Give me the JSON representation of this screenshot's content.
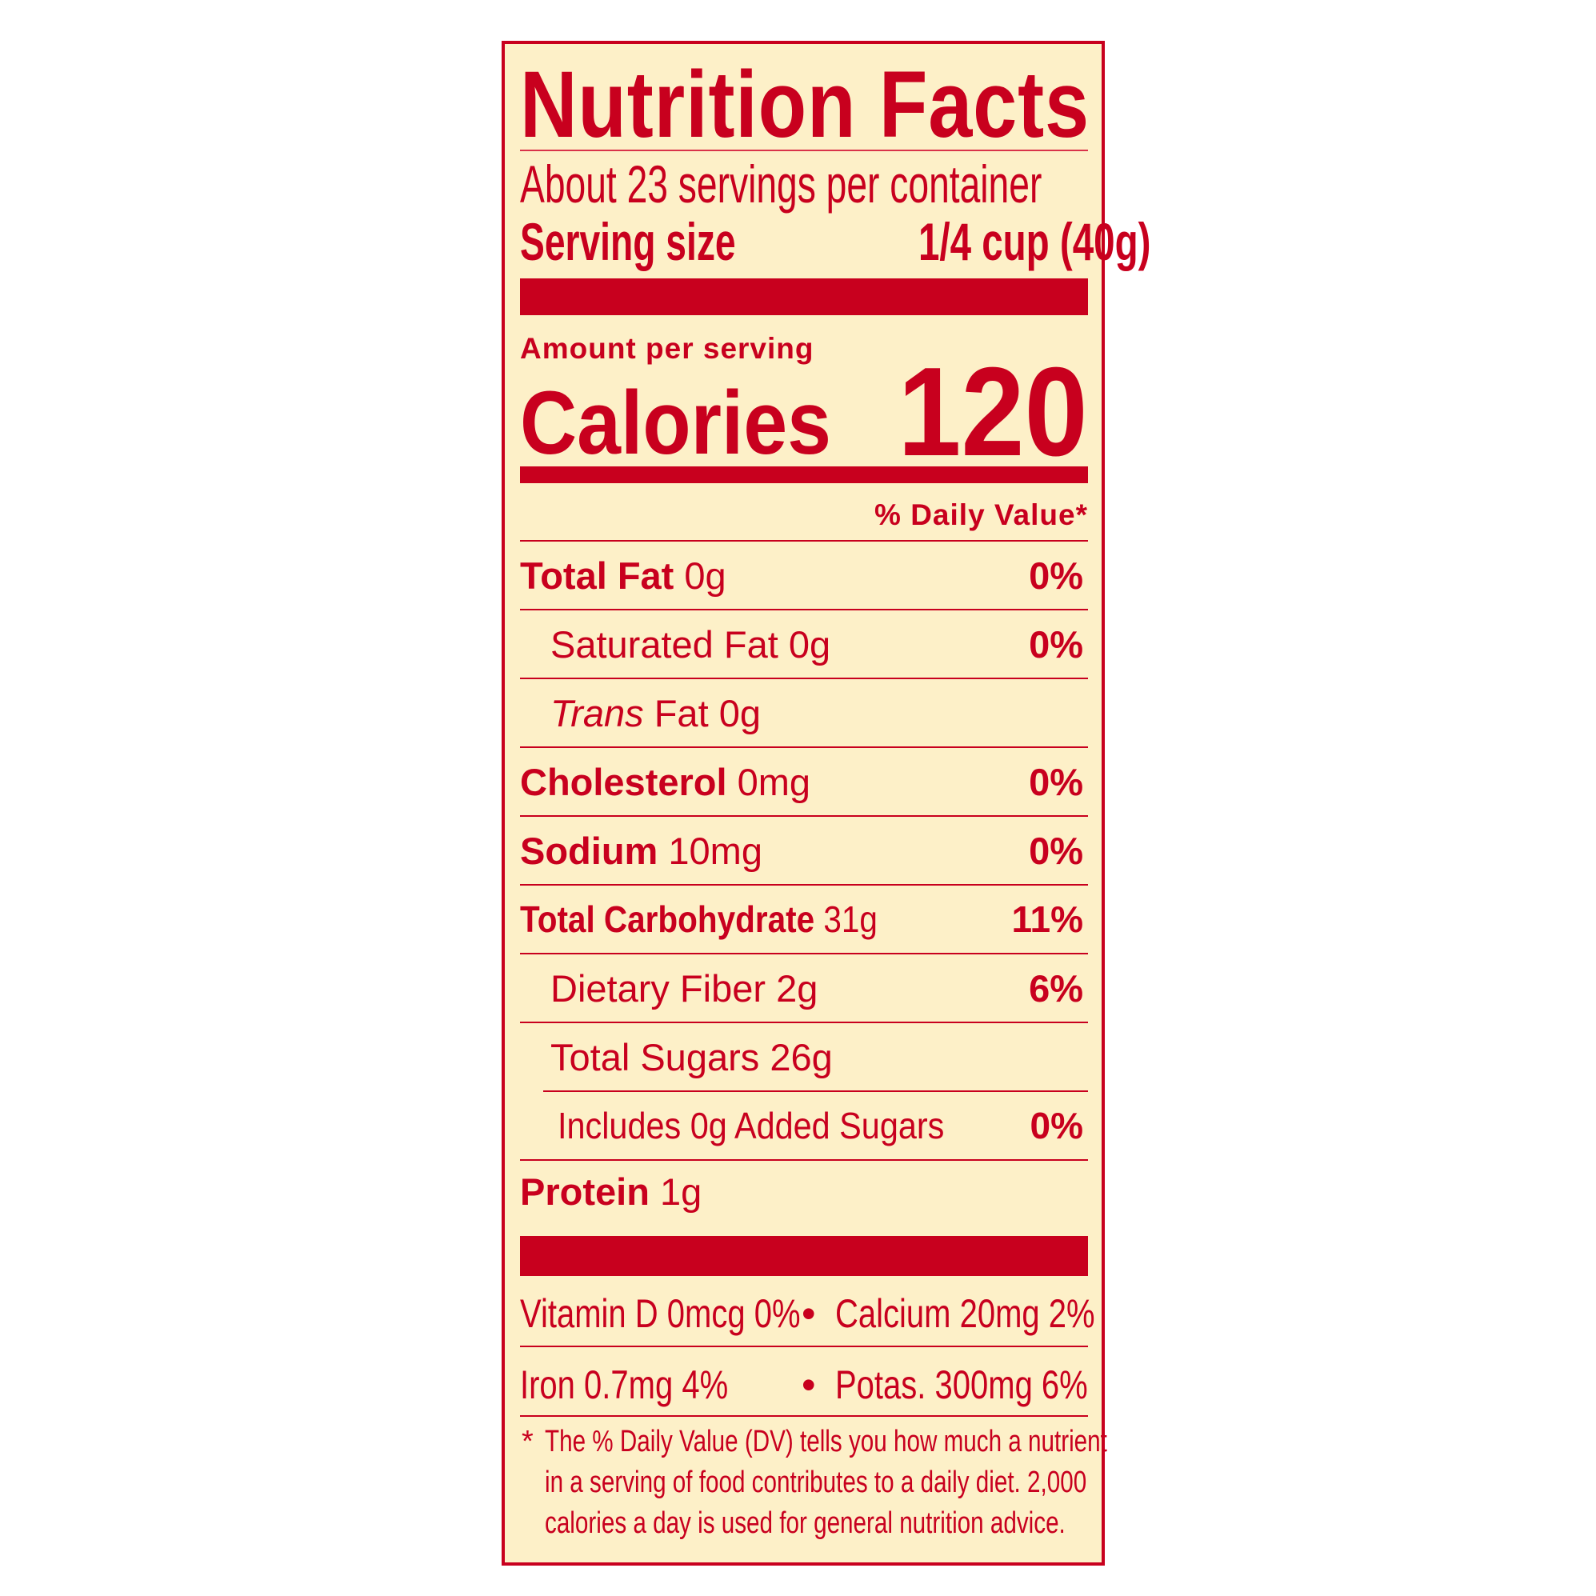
{
  "title": "Nutrition Facts",
  "servings_per_container": "About 23 servings per container",
  "serving_size": {
    "label": "Serving size",
    "value": "1/4 cup (40g)"
  },
  "amount_per_serving": "Amount per serving",
  "calories": {
    "label": "Calories",
    "value": "120"
  },
  "daily_value_header": "% Daily Value*",
  "nutrients": [
    {
      "name": "Total Fat",
      "amount": "0g",
      "dv": "0%"
    },
    {
      "name": "Saturated Fat",
      "amount": "0g",
      "dv": "0%"
    },
    {
      "name": "Trans",
      "suffix": "Fat",
      "amount": "0g",
      "dv": ""
    },
    {
      "name": "Cholesterol",
      "amount": "0mg",
      "dv": "0%"
    },
    {
      "name": "Sodium",
      "amount": "10mg",
      "dv": "0%"
    },
    {
      "name": "Total Carbohydrate",
      "amount": "31g",
      "dv": "11%"
    },
    {
      "name": "Dietary Fiber",
      "amount": "2g",
      "dv": "6%"
    },
    {
      "name": "Total Sugars",
      "amount": "26g",
      "dv": ""
    },
    {
      "name": "Includes 0g Added Sugars",
      "amount": "",
      "dv": "0%"
    },
    {
      "name": "Protein",
      "amount": "1g",
      "dv": ""
    }
  ],
  "vitamins": [
    {
      "left": "Vitamin D 0mcg 0%",
      "right": "Calcium 20mg 2%"
    },
    {
      "left": "Iron 0.7mg 4%",
      "right": "Potas. 300mg 6%"
    }
  ],
  "bullet": "•",
  "footnote": {
    "star": "*",
    "lines": [
      "The % Daily Value (DV) tells you how much a nutrient",
      "in a serving of food contributes to a daily diet. 2,000",
      "calories a day is used for general nutrition advice."
    ]
  },
  "colors": {
    "ink": "#c8001e",
    "background": "#fdf0c8"
  }
}
